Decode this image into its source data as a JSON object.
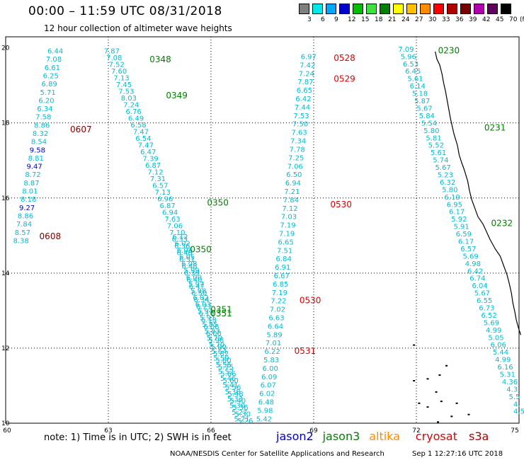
{
  "header": {
    "title": "00:00 – 11:59 UTC 08/31/2018",
    "subtitle": "12 hour collection of altimeter wave heights"
  },
  "color_scale": {
    "unit": "(ft)",
    "labels": [
      "3",
      "6",
      "9",
      "12",
      "15",
      "18",
      "21",
      "24",
      "27",
      "30",
      "33",
      "36",
      "39",
      "42",
      "45",
      "70"
    ],
    "colors": [
      "#7f7f7f",
      "#00e8e8",
      "#00a8ff",
      "#0000cc",
      "#00c000",
      "#40e040",
      "#008000",
      "#ffff00",
      "#ffc000",
      "#ff8c00",
      "#ff0000",
      "#b00000",
      "#7a0000",
      "#b000b0",
      "#600060",
      "#000000"
    ]
  },
  "map": {
    "lon_labels": [
      "60",
      "63",
      "66",
      "69",
      "72",
      "75"
    ],
    "lat_labels": [
      "10",
      "12",
      "14",
      "16",
      "18",
      "20"
    ],
    "tracks": [
      {
        "name": "west",
        "start": {
          "lon": 61.45,
          "lat": 19.85
        },
        "end": {
          "lon": 60.45,
          "lat": 14.8
        },
        "values": [
          "6.44",
          "7.08",
          "6.61",
          "6.25",
          "6.89",
          "5.71",
          "6.20",
          "6.34",
          "7.58",
          "8.86",
          "8.32",
          "8.54",
          "9.58",
          "8.81",
          "9.47",
          "8.72",
          "8.87",
          "8.01",
          "8.18",
          "9.27",
          "8.86",
          "7.84",
          "8.57",
          "8.38"
        ]
      },
      {
        "name": "center-long",
        "start": {
          "lon": 63.1,
          "lat": 19.85
        },
        "end": {
          "lon": 67.0,
          "lat": 10.0
        },
        "values": [
          "7.87",
          "7.08",
          "7.52",
          "7.60",
          "7.13",
          "7.45",
          "7.53",
          "8.03",
          "7.24",
          "6.76",
          "6.49",
          "6.58",
          "7.47",
          "6.54",
          "7.47",
          "6.47",
          "7.39",
          "6.87",
          "7.12",
          "7.31",
          "6.57",
          "7.13",
          "6.96",
          "6.87",
          "6.94",
          "7.63",
          "7.06",
          "7.10",
          "6.33",
          "6.36",
          "6.46",
          "6.51",
          "6.48",
          "6.39",
          "6.40",
          "6.47",
          "6.50",
          "6.34",
          "6.21",
          "6.16",
          "6.13",
          "6.08",
          "6.00",
          "5.98",
          "5.90",
          "5.82",
          "5.80",
          "5.75",
          "5.66",
          "5.60",
          "5.56",
          "5.48",
          "5.40",
          "5.36",
          "5.30",
          "5.26"
        ]
      },
      {
        "name": "center-short",
        "start": {
          "lon": 65.1,
          "lat": 14.9
        },
        "end": {
          "lon": 66.9,
          "lat": 10.05
        },
        "values": [
          "6.12",
          "6.02",
          "6.06",
          "6.05",
          "6.08",
          "5.99",
          "6.00",
          "5.97",
          "5.98",
          "6.02",
          "6.03",
          "5.94",
          "5.91",
          "5.85",
          "5.83",
          "5.79",
          "5.70",
          "5.64",
          "5.59",
          "5.55",
          "5.52",
          "5.46",
          "5.41",
          "5.38",
          "5.33",
          "5.30",
          "5.27",
          "5.21"
        ]
      },
      {
        "name": "east-mid",
        "start": {
          "lon": 68.85,
          "lat": 19.7
        },
        "end": {
          "lon": 67.55,
          "lat": 10.05
        },
        "values": [
          "6.97",
          "7.42",
          "7.24",
          "7.87",
          "6.65",
          "6.42",
          "7.44",
          "7.53",
          "7.50",
          "7.63",
          "7.34",
          "7.78",
          "7.25",
          "7.06",
          "6.50",
          "6.94",
          "7.21",
          "7.84",
          "7.12",
          "7.03",
          "7.19",
          "7.19",
          "6.65",
          "7.51",
          "6.84",
          "6.91",
          "6.67",
          "6.85",
          "7.19",
          "7.22",
          "7.02",
          "6.63",
          "6.64",
          "5.89",
          "7.01",
          "6.22",
          "5.83",
          "6.00",
          "6.09",
          "6.07",
          "6.02",
          "6.48",
          "5.98",
          "5.42"
        ]
      },
      {
        "name": "east-long",
        "start": {
          "lon": 71.7,
          "lat": 19.9
        },
        "end": {
          "lon": 75.0,
          "lat": 10.25
        },
        "values": [
          "7.09",
          "5.96",
          "6.53",
          "6.45",
          "5.61",
          "6.14",
          "5.18",
          "5.87",
          "5.67",
          "5.84",
          "5.54",
          "5.80",
          "5.81",
          "5.52",
          "5.61",
          "5.74",
          "5.67",
          "5.23",
          "6.32",
          "5.80",
          "6.19",
          "6.95",
          "6.17",
          "5.92",
          "5.91",
          "6.59",
          "6.17",
          "6.57",
          "5.69",
          "4.98",
          "6.42",
          "6.74",
          "6.04",
          "5.67",
          "6.55",
          "6.73",
          "6.52",
          "5.69",
          "4.99",
          "5.05",
          "6.06",
          "5.44",
          "4.99",
          "6.16",
          "5.31",
          "4.36",
          "4.3",
          "5.5",
          "4.",
          "4.5"
        ]
      }
    ],
    "time_labels": [
      {
        "text": "0348",
        "lon": 64.52,
        "lat": 19.62,
        "color": "#008000"
      },
      {
        "text": "0349",
        "lon": 65.0,
        "lat": 18.65,
        "color": "#008000"
      },
      {
        "text": "0350",
        "lon": 66.2,
        "lat": 15.8,
        "color": "#008000"
      },
      {
        "text": "0350",
        "lon": 65.7,
        "lat": 14.55,
        "color": "#008000"
      },
      {
        "text": "0351",
        "lon": 66.3,
        "lat": 12.95,
        "color": "#008000"
      },
      {
        "text": "0351",
        "lon": 66.3,
        "lat": 12.85,
        "color": "#008000"
      },
      {
        "text": "0528",
        "lon": 69.9,
        "lat": 19.65,
        "color": "#e00000"
      },
      {
        "text": "0529",
        "lon": 69.9,
        "lat": 19.1,
        "color": "#e00000"
      },
      {
        "text": "0530",
        "lon": 69.8,
        "lat": 15.75,
        "color": "#e00000"
      },
      {
        "text": "0530",
        "lon": 68.9,
        "lat": 13.2,
        "color": "#e00000"
      },
      {
        "text": "0531",
        "lon": 68.75,
        "lat": 11.85,
        "color": "#e00000"
      },
      {
        "text": "0607",
        "lon": 62.2,
        "lat": 17.75,
        "color": "#800000"
      },
      {
        "text": "0608",
        "lon": 61.3,
        "lat": 14.9,
        "color": "#800000"
      },
      {
        "text": "0230",
        "lon": 72.95,
        "lat": 19.85,
        "color": "#008000"
      },
      {
        "text": "0231",
        "lon": 74.3,
        "lat": 17.8,
        "color": "#008000"
      },
      {
        "text": "0232",
        "lon": 74.5,
        "lat": 15.25,
        "color": "#008000"
      }
    ]
  },
  "footer": {
    "note": "note: 1) Time is in UTC; 2) SWH is in feet",
    "missions": [
      {
        "name": "jason2",
        "color": "#0000cc"
      },
      {
        "name": "jason3",
        "color": "#008000"
      },
      {
        "name": "altika",
        "color": "#ff8c00"
      },
      {
        "name": "cryosat",
        "color": "#e00000"
      },
      {
        "name": "s3a",
        "color": "#b00000"
      }
    ],
    "credit": "NOAA/NESDIS Center for Satellite Applications and Research",
    "timestamp": "Sep  1 12:27:16 UTC 2018"
  }
}
